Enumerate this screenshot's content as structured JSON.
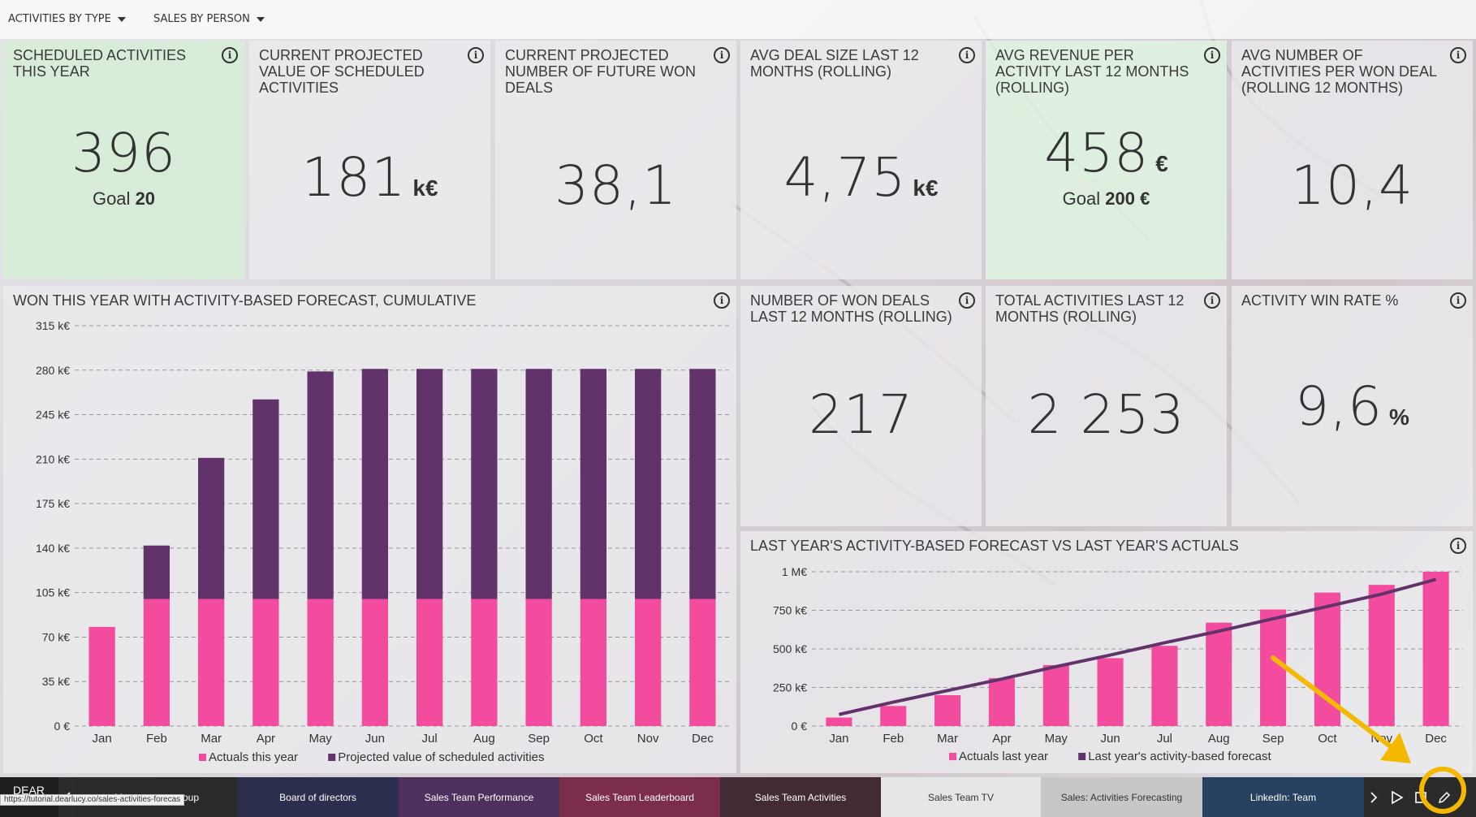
{
  "filters": {
    "activities_by_type": "ACTIVITIES BY TYPE",
    "sales_by_person": "SALES BY PERSON"
  },
  "kpis": {
    "scheduled": {
      "title": "SCHEDULED ACTIVITIES THIS YEAR",
      "value": "396",
      "goal_label": "Goal",
      "goal_value": "20"
    },
    "projected_value": {
      "title": "CURRENT PROJECTED VALUE OF SCHEDULED ACTIVITIES",
      "value": "181",
      "unit": "k€"
    },
    "projected_won": {
      "title": "CURRENT PROJECTED NUMBER OF FUTURE WON DEALS",
      "value": "38,1"
    },
    "avg_deal": {
      "title": "AVG DEAL SIZE LAST 12 MONTHS (ROLLING)",
      "value": "4,75",
      "unit": "k€"
    },
    "avg_revenue": {
      "title": "AVG REVENUE PER ACTIVITY LAST 12 MONTHS (ROLLING)",
      "value": "458",
      "unit": "€",
      "goal_label": "Goal",
      "goal_value": "200 €"
    },
    "avg_activities": {
      "title": "AVG NUMBER OF ACTIVITIES PER WON DEAL (ROLLING 12 MONTHS)",
      "value": "10,4"
    },
    "won_deals": {
      "title": "NUMBER OF WON DEALS LAST 12 MONTHS (ROLLING)",
      "value": "217"
    },
    "total_activities": {
      "title": "TOTAL ACTIVITIES LAST 12 MONTHS (ROLLING)",
      "value": "2 253"
    },
    "win_rate": {
      "title": "ACTIVITY WIN RATE %",
      "value": "9,6",
      "unit": "%"
    }
  },
  "chart_data": [
    {
      "type": "bar",
      "stacked": true,
      "title": "WON THIS YEAR WITH ACTIVITY-BASED FORECAST, CUMULATIVE",
      "categories": [
        "Jan",
        "Feb",
        "Mar",
        "Apr",
        "May",
        "Jun",
        "Jul",
        "Aug",
        "Sep",
        "Oct",
        "Nov",
        "Dec"
      ],
      "yticks": [
        "0 €",
        "35 k€",
        "70 k€",
        "105 k€",
        "140 k€",
        "175 k€",
        "210 k€",
        "245 k€",
        "280 k€",
        "315 k€"
      ],
      "ylim": [
        0,
        315
      ],
      "series": [
        {
          "name": "Actuals this year",
          "color": "#f34b9d",
          "values": [
            78,
            100,
            100,
            100,
            100,
            100,
            100,
            100,
            100,
            100,
            100,
            100
          ]
        },
        {
          "name": "Projected value of scheduled activities",
          "color": "#62336b",
          "values": [
            0,
            42,
            111,
            157,
            179,
            181,
            181,
            181,
            181,
            181,
            181,
            181
          ]
        }
      ],
      "grid": true,
      "legend": "bottom-center"
    },
    {
      "type": "bar",
      "title": "LAST YEAR'S ACTIVITY-BASED FORECAST VS LAST YEAR'S ACTUALS",
      "categories": [
        "Jan",
        "Feb",
        "Mar",
        "Apr",
        "May",
        "Jun",
        "Jul",
        "Aug",
        "Sep",
        "Oct",
        "Nov",
        "Dec"
      ],
      "yticks": [
        "0 €",
        "250 k€",
        "500 k€",
        "750 k€",
        "1 M€"
      ],
      "ylim": [
        0,
        1000
      ],
      "series": [
        {
          "name": "Actuals last year",
          "type": "bar",
          "color": "#f34b9d",
          "values": [
            55,
            130,
            200,
            310,
            395,
            440,
            520,
            670,
            755,
            865,
            915,
            1000
          ]
        },
        {
          "name": "Last year's activity-based forecast",
          "type": "line",
          "color": "#62336b",
          "values": [
            75,
            155,
            230,
            305,
            385,
            460,
            540,
            615,
            695,
            775,
            855,
            950
          ]
        }
      ],
      "grid": true,
      "legend": "bottom-center"
    }
  ],
  "tabs": [
    {
      "label": "Management group",
      "color": "#2a2a2a"
    },
    {
      "label": "Board of directors",
      "color": "#2c2e4e"
    },
    {
      "label": "Sales Team Performance",
      "color": "#4e2f5e"
    },
    {
      "label": "Sales Team Leaderboard",
      "color": "#7d2d4c"
    },
    {
      "label": "Sales Team Activities",
      "color": "#432b35"
    },
    {
      "label": "Sales Team TV",
      "color": "#e6e6e6"
    },
    {
      "label": "Sales: Activities Forecasting",
      "color": "#c7c7c7"
    },
    {
      "label": "LinkedIn: Team",
      "color": "#264260"
    }
  ],
  "logo_text": "DEAR",
  "status_url": "https://tutorial.dearlucy.co/sales-activities-forecas",
  "icons": [
    "chevron-left-icon",
    "chevron-right-icon",
    "play-icon",
    "fullscreen-icon",
    "pencil-icon",
    "info-icon",
    "caret-down-icon"
  ],
  "highlight_color": "#f5b800"
}
